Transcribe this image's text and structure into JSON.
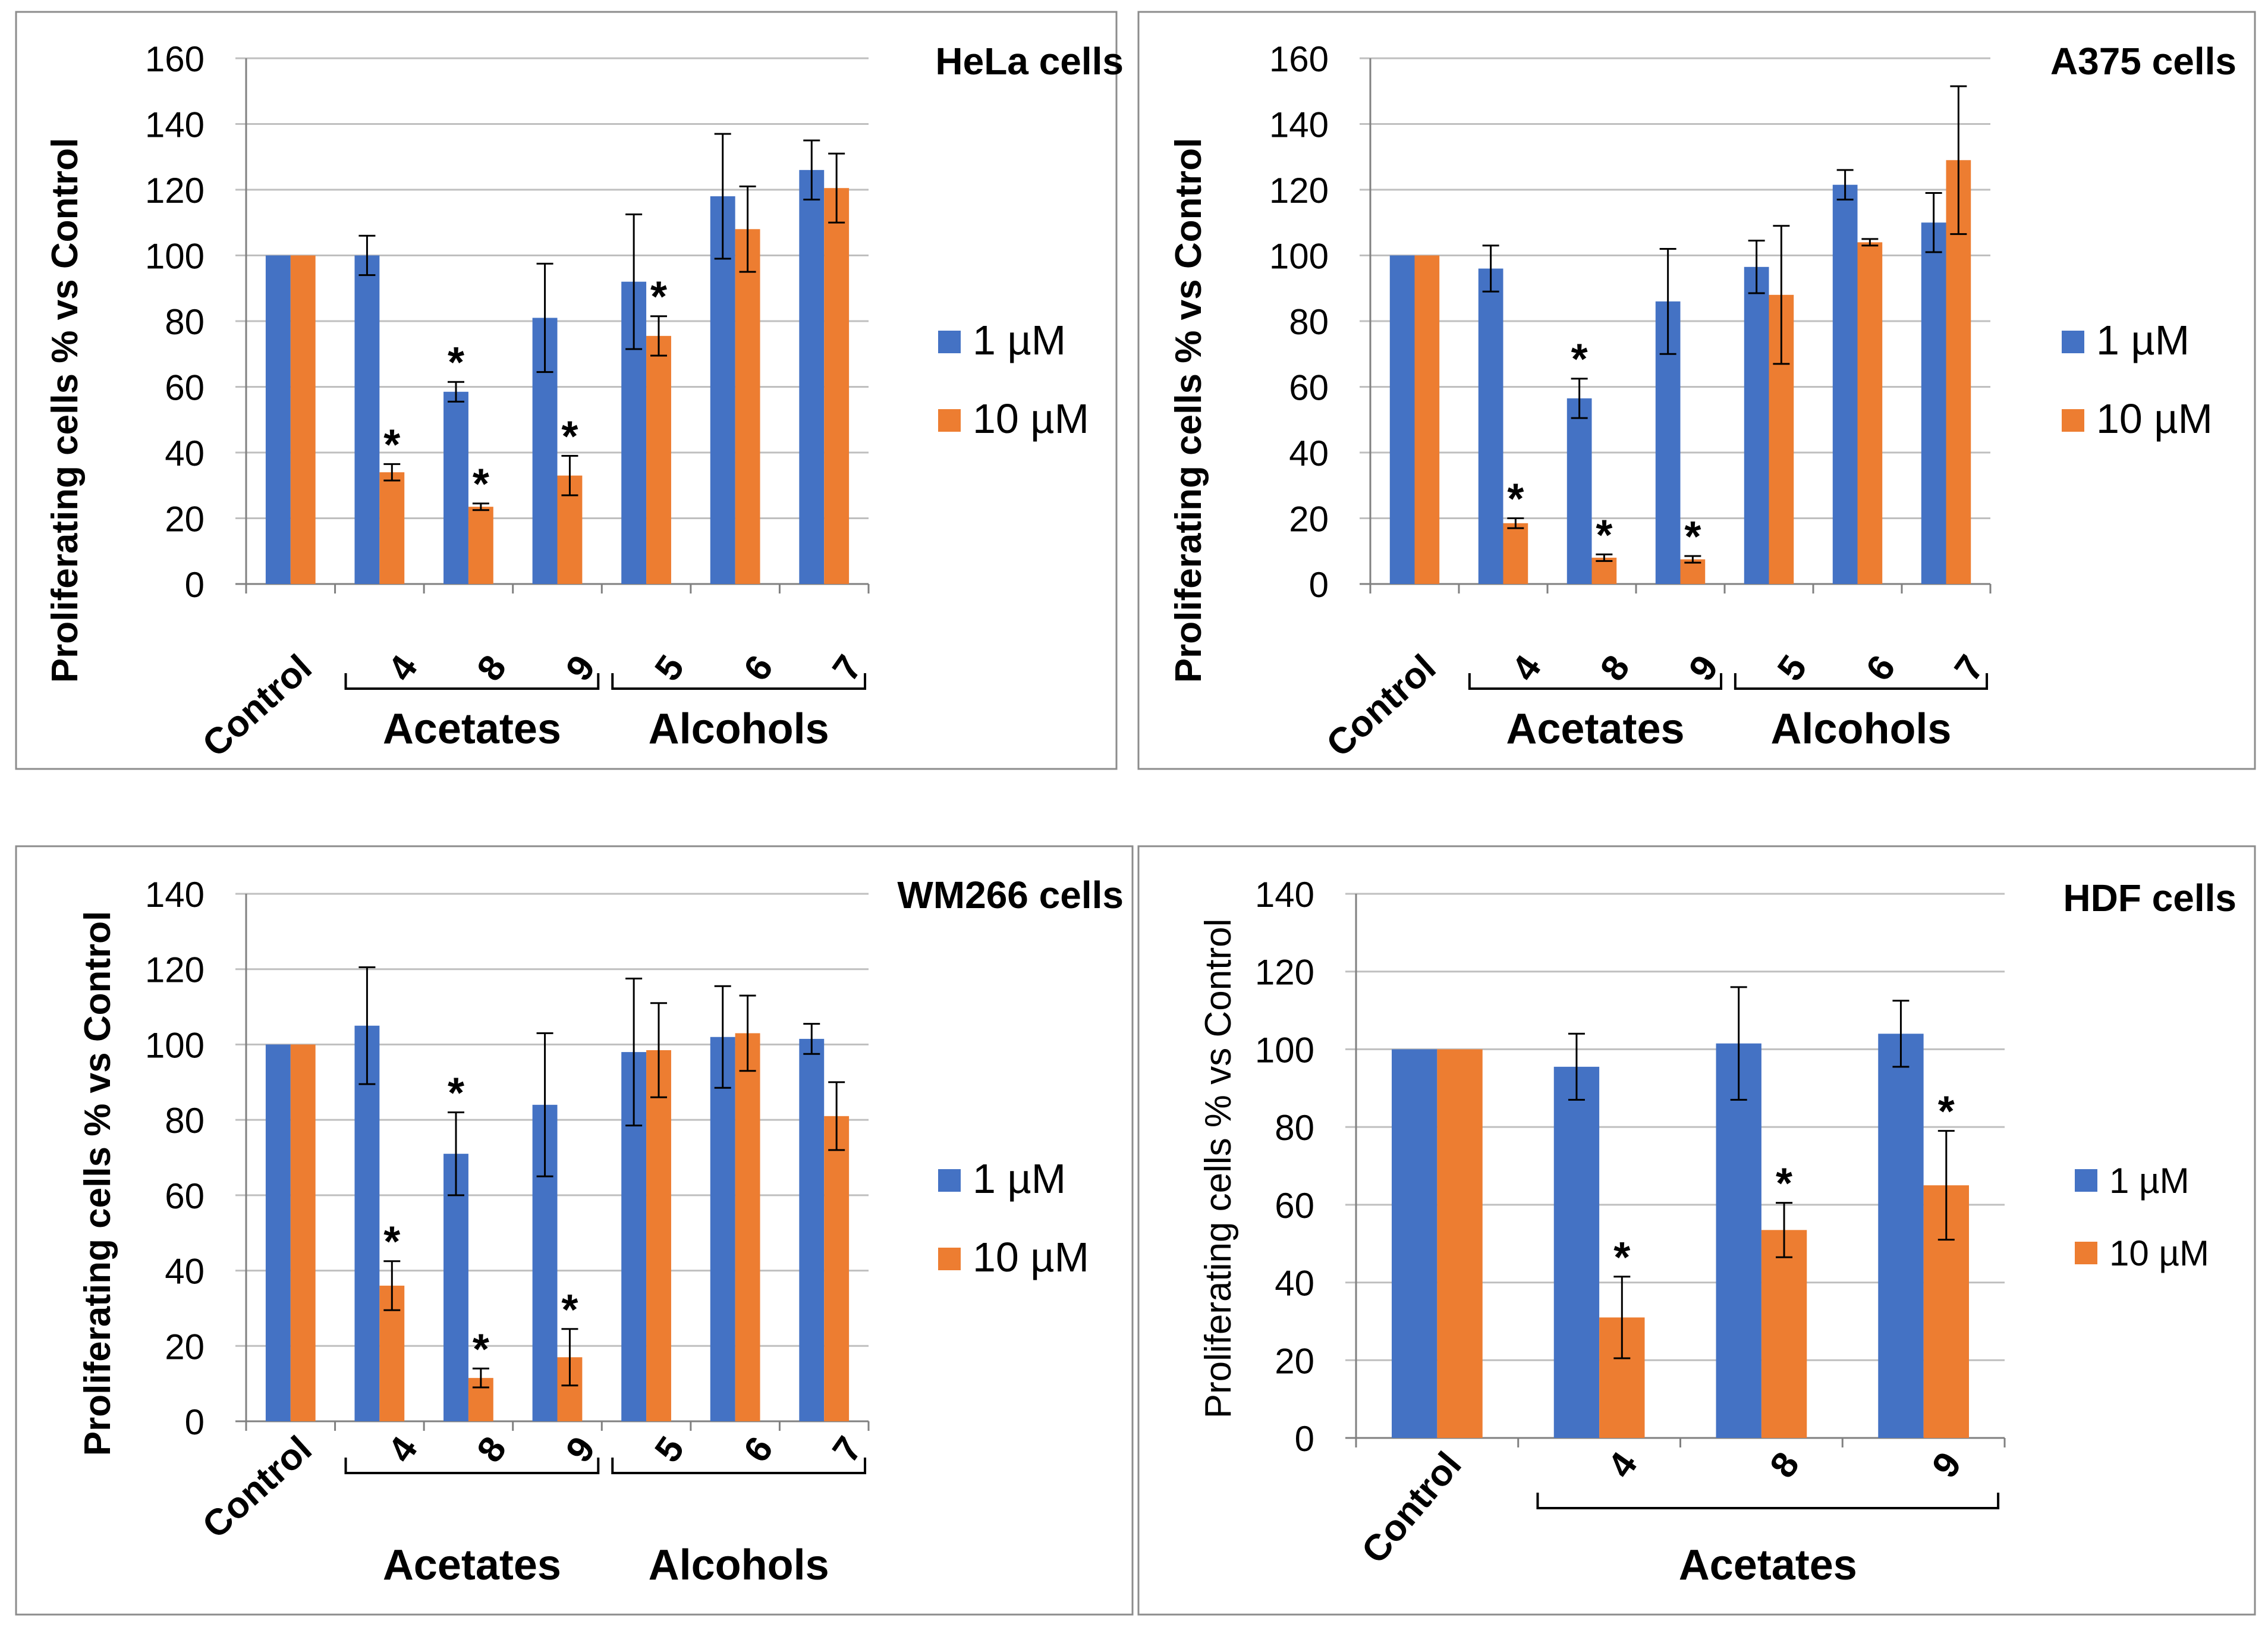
{
  "colors": {
    "series1": "#4472C4",
    "series2": "#ED7D31",
    "grid": "#BFBFBF",
    "axis": "#808080",
    "frame": "#8C8C8C",
    "text": "#000000"
  },
  "shared": {
    "legend": [
      "1 µM",
      "10 µM"
    ],
    "ylabel": "Proliferating cells % vs Control",
    "star": "*"
  },
  "chart_data": [
    {
      "type": "bar",
      "title": "HeLa cells",
      "ylabel": "Proliferating cells % vs Control",
      "ylim": [
        0,
        160
      ],
      "yticks": [
        0,
        20,
        40,
        60,
        80,
        100,
        120,
        140,
        160
      ],
      "categories": [
        "Control",
        "4",
        "8",
        "9",
        "5",
        "6",
        "7"
      ],
      "series": [
        {
          "name": "1 µM",
          "values": [
            100,
            100,
            58.5,
            81,
            92,
            118,
            126
          ],
          "errors": [
            0,
            6,
            3,
            16.5,
            20.5,
            19,
            9
          ],
          "significant": [
            false,
            false,
            true,
            false,
            false,
            false,
            false
          ]
        },
        {
          "name": "10 µM",
          "values": [
            100,
            34,
            23.5,
            33,
            75.5,
            108,
            120.5
          ],
          "errors": [
            0,
            2.5,
            1,
            6,
            6,
            13,
            10.5
          ],
          "significant": [
            false,
            true,
            true,
            true,
            true,
            false,
            false
          ]
        }
      ],
      "groups": [
        {
          "label": "Acetates",
          "from": 1,
          "to": 3
        },
        {
          "label": "Alcohols",
          "from": 4,
          "to": 6
        }
      ]
    },
    {
      "type": "bar",
      "title": "A375 cells",
      "ylabel": "Proliferating cells % vs Control",
      "ylim": [
        0,
        160
      ],
      "yticks": [
        0,
        20,
        40,
        60,
        80,
        100,
        120,
        140,
        160
      ],
      "categories": [
        "Control",
        "4",
        "8",
        "9",
        "5",
        "6",
        "7"
      ],
      "series": [
        {
          "name": "1 µM",
          "values": [
            100,
            96,
            56.5,
            86,
            96.5,
            121.5,
            110
          ],
          "errors": [
            0,
            7,
            6,
            16,
            8,
            4.5,
            9
          ],
          "significant": [
            false,
            false,
            true,
            false,
            false,
            false,
            false
          ]
        },
        {
          "name": "10 µM",
          "values": [
            100,
            18.5,
            8,
            7.5,
            88,
            104,
            129
          ],
          "errors": [
            0,
            1.5,
            1,
            1,
            21,
            1,
            22.5
          ],
          "significant": [
            false,
            true,
            true,
            true,
            false,
            false,
            false
          ]
        }
      ],
      "groups": [
        {
          "label": "Acetates",
          "from": 1,
          "to": 3
        },
        {
          "label": "Alcohols",
          "from": 4,
          "to": 6
        }
      ]
    },
    {
      "type": "bar",
      "title": "WM266 cells",
      "ylabel": "Proliferating cells % vs Control",
      "ylim": [
        0,
        140
      ],
      "yticks": [
        0,
        20,
        40,
        60,
        80,
        100,
        120,
        140
      ],
      "categories": [
        "Control",
        "4",
        "8",
        "9",
        "5",
        "6",
        "7"
      ],
      "series": [
        {
          "name": "1 µM",
          "values": [
            100,
            105,
            71,
            84,
            98,
            102,
            101.5
          ],
          "errors": [
            0,
            15.5,
            11,
            19,
            19.5,
            13.5,
            4
          ],
          "significant": [
            false,
            false,
            true,
            false,
            false,
            false,
            false
          ]
        },
        {
          "name": "10 µM",
          "values": [
            100,
            36,
            11.5,
            17,
            98.5,
            103,
            81
          ],
          "errors": [
            0,
            6.5,
            2.5,
            7.5,
            12.5,
            10,
            9
          ],
          "significant": [
            false,
            true,
            true,
            true,
            false,
            false,
            false
          ]
        }
      ],
      "groups": [
        {
          "label": "Acetates",
          "from": 1,
          "to": 3
        },
        {
          "label": "Alcohols",
          "from": 4,
          "to": 6
        }
      ]
    },
    {
      "type": "bar",
      "title": "HDF cells",
      "ylabel": "Proliferating cells % vs Control",
      "ylim": [
        0,
        140
      ],
      "yticks": [
        0,
        20,
        40,
        60,
        80,
        100,
        120,
        140
      ],
      "categories": [
        "Control",
        "4",
        "8",
        "9"
      ],
      "series": [
        {
          "name": "1 µM",
          "values": [
            100,
            95.5,
            101.5,
            104
          ],
          "errors": [
            0,
            8.5,
            14.5,
            8.5
          ],
          "significant": [
            false,
            false,
            false,
            false
          ]
        },
        {
          "name": "10 µM",
          "values": [
            100,
            31,
            53.5,
            65
          ],
          "errors": [
            0,
            10.5,
            7,
            14
          ],
          "significant": [
            false,
            true,
            true,
            true
          ]
        }
      ],
      "groups": [
        {
          "label": "Acetates",
          "from": 1,
          "to": 3
        }
      ]
    }
  ]
}
